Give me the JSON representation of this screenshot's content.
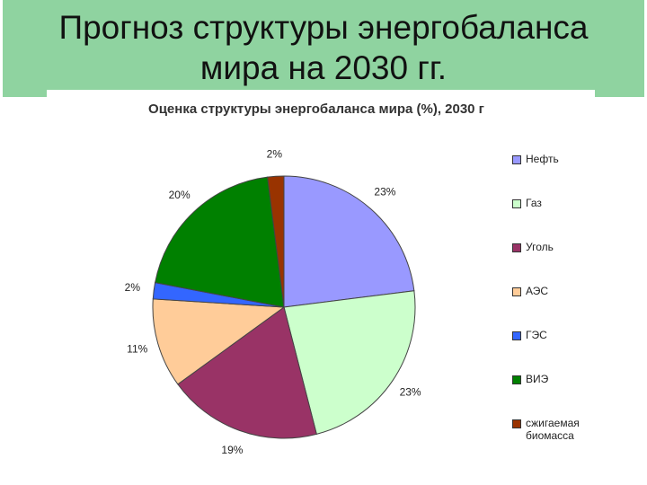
{
  "slide_title": "Прогноз структуры энергобаланса мира на 2030 гг.",
  "chart_data": {
    "type": "pie",
    "title": "Оценка структуры энергобаланса мира (%), 2030 г",
    "categories": [
      "Нефть",
      "Газ",
      "Уголь",
      "АЭС",
      "ГЭС",
      "ВИЭ",
      "сжигаемая биомасса"
    ],
    "values": [
      23,
      23,
      19,
      11,
      2,
      20,
      2
    ],
    "value_labels": [
      "23%",
      "23%",
      "19%",
      "11%",
      "2%",
      "20%",
      "2%"
    ],
    "colors": [
      "#9999ff",
      "#ccffcc",
      "#993366",
      "#ffcc99",
      "#3366ff",
      "#008000",
      "#993300"
    ],
    "legend": "right"
  }
}
